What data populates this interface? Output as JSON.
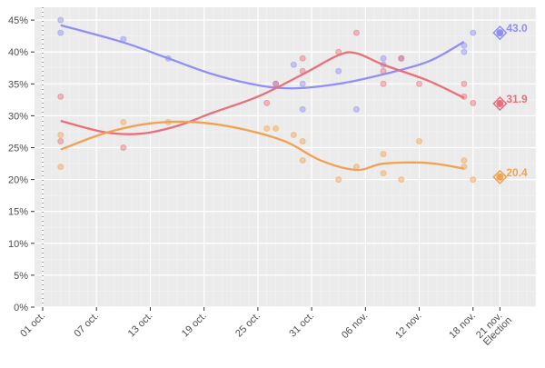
{
  "chart_data": {
    "type": "scatter",
    "title": "",
    "xlabel": "",
    "ylabel": "",
    "ylim": [
      0,
      47
    ],
    "xlim": [
      "2017-09-30",
      "2017-11-25"
    ],
    "y_ticks": [
      "0%",
      "5%",
      "10%",
      "15%",
      "20%",
      "25%",
      "30%",
      "35%",
      "40%",
      "45%"
    ],
    "y_tick_values": [
      0,
      5,
      10,
      15,
      20,
      25,
      30,
      35,
      40,
      45
    ],
    "x_ticks": [
      {
        "date": "2017-10-01",
        "label": "01 oct."
      },
      {
        "date": "2017-10-07",
        "label": "07 oct."
      },
      {
        "date": "2017-10-13",
        "label": "13 oct."
      },
      {
        "date": "2017-10-19",
        "label": "19 oct."
      },
      {
        "date": "2017-10-25",
        "label": "25 oct."
      },
      {
        "date": "2017-10-31",
        "label": "31 oct."
      },
      {
        "date": "2017-11-06",
        "label": "06 nov."
      },
      {
        "date": "2017-11-12",
        "label": "12 nov."
      },
      {
        "date": "2017-11-18",
        "label": "18 nov."
      },
      {
        "date": "2017-11-21",
        "label": "21 nov.",
        "label2": "Election"
      }
    ],
    "grid": true,
    "background": "#ebebeb",
    "series": [
      {
        "color": "#8f8ff5",
        "result": {
          "date": "2017-11-21",
          "value": 43.0,
          "label": "43.0"
        },
        "points": [
          [
            "2017-10-03",
            45
          ],
          [
            "2017-10-03",
            43
          ],
          [
            "2017-10-10",
            42
          ],
          [
            "2017-10-15",
            39
          ],
          [
            "2017-10-27",
            35
          ],
          [
            "2017-10-29",
            38
          ],
          [
            "2017-10-30",
            35
          ],
          [
            "2017-10-30",
            31
          ],
          [
            "2017-11-03",
            37
          ],
          [
            "2017-11-05",
            31
          ],
          [
            "2017-11-08",
            39
          ],
          [
            "2017-11-08",
            38
          ],
          [
            "2017-11-10",
            39
          ],
          [
            "2017-11-17",
            40
          ],
          [
            "2017-11-17",
            41
          ],
          [
            "2017-11-18",
            43
          ]
        ],
        "trend": [
          [
            "2017-10-03",
            44.2
          ],
          [
            "2017-10-10",
            41.5
          ],
          [
            "2017-10-15",
            39
          ],
          [
            "2017-10-20",
            36.5
          ],
          [
            "2017-10-25",
            34.8
          ],
          [
            "2017-10-29",
            34.3
          ],
          [
            "2017-11-03",
            35
          ],
          [
            "2017-11-08",
            36.5
          ],
          [
            "2017-11-13",
            38.5
          ],
          [
            "2017-11-17",
            41.6
          ]
        ]
      },
      {
        "color": "#e8707a",
        "result": {
          "date": "2017-11-21",
          "value": 31.9,
          "label": "31.9"
        },
        "points": [
          [
            "2017-10-03",
            33
          ],
          [
            "2017-10-03",
            26
          ],
          [
            "2017-10-10",
            25
          ],
          [
            "2017-10-26",
            32
          ],
          [
            "2017-10-27",
            35
          ],
          [
            "2017-10-30",
            39
          ],
          [
            "2017-10-30",
            37
          ],
          [
            "2017-11-03",
            40
          ],
          [
            "2017-11-05",
            43
          ],
          [
            "2017-11-08",
            37
          ],
          [
            "2017-11-08",
            35
          ],
          [
            "2017-11-10",
            39
          ],
          [
            "2017-11-12",
            35
          ],
          [
            "2017-11-17",
            35
          ],
          [
            "2017-11-17",
            33
          ],
          [
            "2017-11-18",
            32
          ]
        ],
        "trend": [
          [
            "2017-10-03",
            29.2
          ],
          [
            "2017-10-08",
            27.4
          ],
          [
            "2017-10-12",
            27.2
          ],
          [
            "2017-10-16",
            28.4
          ],
          [
            "2017-10-20",
            30.5
          ],
          [
            "2017-10-25",
            33
          ],
          [
            "2017-10-30",
            36.5
          ],
          [
            "2017-11-03",
            39.5
          ],
          [
            "2017-11-05",
            39.8
          ],
          [
            "2017-11-08",
            38
          ],
          [
            "2017-11-13",
            35.5
          ],
          [
            "2017-11-17",
            32.8
          ]
        ]
      },
      {
        "color": "#f2a150",
        "result": {
          "date": "2017-11-21",
          "value": 20.4,
          "label": "20.4"
        },
        "points": [
          [
            "2017-10-03",
            27
          ],
          [
            "2017-10-03",
            22
          ],
          [
            "2017-10-10",
            29
          ],
          [
            "2017-10-15",
            29
          ],
          [
            "2017-10-26",
            28
          ],
          [
            "2017-10-27",
            28
          ],
          [
            "2017-10-29",
            27
          ],
          [
            "2017-10-30",
            26
          ],
          [
            "2017-10-30",
            23
          ],
          [
            "2017-11-03",
            20
          ],
          [
            "2017-11-05",
            22
          ],
          [
            "2017-11-08",
            24
          ],
          [
            "2017-11-08",
            21
          ],
          [
            "2017-11-10",
            20
          ],
          [
            "2017-11-12",
            26
          ],
          [
            "2017-11-17",
            23
          ],
          [
            "2017-11-17",
            22
          ],
          [
            "2017-11-18",
            20
          ]
        ],
        "trend": [
          [
            "2017-10-03",
            24.7
          ],
          [
            "2017-10-08",
            27.3
          ],
          [
            "2017-10-13",
            28.8
          ],
          [
            "2017-10-18",
            29
          ],
          [
            "2017-10-23",
            28
          ],
          [
            "2017-10-28",
            26
          ],
          [
            "2017-11-01",
            23
          ],
          [
            "2017-11-05",
            21.5
          ],
          [
            "2017-11-08",
            22.5
          ],
          [
            "2017-11-13",
            22.6
          ],
          [
            "2017-11-17",
            21.7
          ]
        ]
      }
    ]
  }
}
